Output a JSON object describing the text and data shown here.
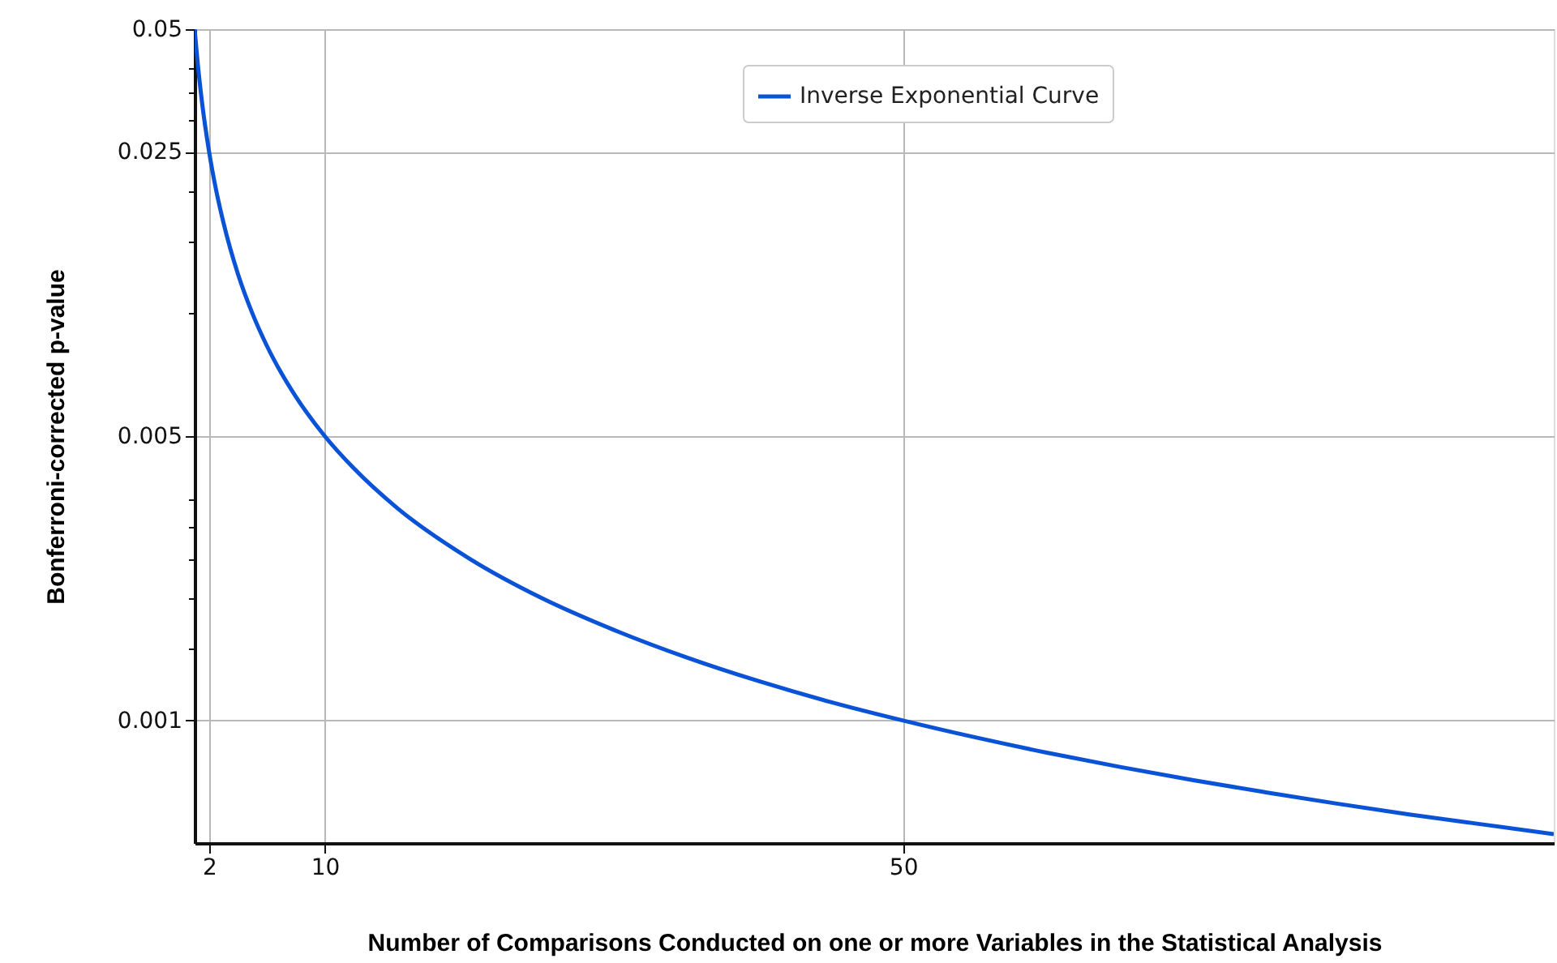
{
  "chart_data": {
    "type": "line",
    "xlabel": "Number of Comparisons Conducted on one or more Variables in the Statistical Analysis",
    "ylabel": "Bonferroni-corrected p-value",
    "x": [
      1,
      1.2,
      1.5,
      2,
      2.5,
      3,
      4,
      5,
      6,
      7,
      8,
      10,
      12,
      15,
      20,
      25,
      30,
      35,
      40,
      45,
      50,
      55,
      60,
      65,
      70,
      75,
      80,
      85,
      90,
      95
    ],
    "series": [
      {
        "name": "Inverse Exponential Curve",
        "color": "#0a52d6",
        "values": [
          0.05,
          0.0417,
          0.0333,
          0.025,
          0.02,
          0.0167,
          0.0125,
          0.01,
          0.00833,
          0.00714,
          0.00625,
          0.005,
          0.00417,
          0.00333,
          0.0025,
          0.002,
          0.00167,
          0.00143,
          0.00125,
          0.00111,
          0.001,
          0.000909,
          0.000833,
          0.000769,
          0.000714,
          0.000667,
          0.000625,
          0.000588,
          0.000556,
          0.000526
        ]
      }
    ],
    "xlim": [
      1,
      95
    ],
    "xticks": [
      2,
      10,
      50
    ],
    "ylim": [
      0.0005,
      0.05
    ],
    "yticks": [
      0.001,
      {
        "value": 0.0015,
        "label": null
      },
      {
        "value": 0.002,
        "label": null
      },
      {
        "value": 0.0025,
        "label": null
      },
      {
        "value": 0.003,
        "label": null
      },
      {
        "value": 0.0035,
        "label": null
      },
      0.005,
      {
        "value": 0.01,
        "label": null
      },
      {
        "value": 0.015,
        "label": null
      },
      {
        "value": 0.02,
        "label": null
      },
      0.025,
      {
        "value": 0.03,
        "label": null
      },
      {
        "value": 0.035,
        "label": null
      },
      {
        "value": 0.04,
        "label": null
      },
      0.05
    ],
    "log": "y",
    "grid": true,
    "legend": "top",
    "marker": "none",
    "line_style": "solid"
  }
}
